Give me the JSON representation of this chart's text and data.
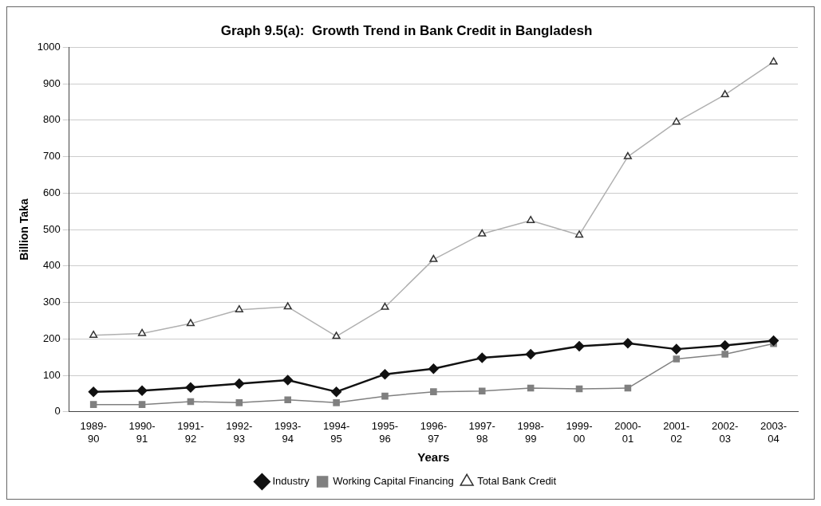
{
  "chart_data": {
    "type": "line",
    "title": "Graph 9.5(a):  Growth Trend in Bank Credit in Bangladesh",
    "xlabel": "Years",
    "ylabel": "Billion Taka",
    "categories": [
      "1989-90",
      "1990-91",
      "1991-92",
      "1992-93",
      "1993-94",
      "1994-95",
      "1995-96",
      "1996-97",
      "1997-98",
      "1998-99",
      "1999-00",
      "2000-01",
      "2001-02",
      "2002-03",
      "2003-04"
    ],
    "series": [
      {
        "name": "Industry",
        "color": "#111111",
        "marker": "diamond",
        "values": [
          55,
          58,
          67,
          77,
          87,
          55,
          103,
          118,
          148,
          158,
          180,
          188,
          172,
          182,
          195
        ]
      },
      {
        "name": "Working Capital Financing",
        "color": "#808080",
        "marker": "square",
        "values": [
          20,
          20,
          28,
          25,
          33,
          25,
          43,
          55,
          57,
          65,
          63,
          65,
          145,
          158,
          187
        ]
      },
      {
        "name": "Total Bank Credit",
        "color": "#b0b0b0",
        "marker": "triangle",
        "values": [
          210,
          215,
          242,
          280,
          288,
          207,
          287,
          418,
          488,
          525,
          485,
          700,
          795,
          870,
          960
        ]
      }
    ],
    "ylim": [
      0,
      1000
    ],
    "yticks": [
      0,
      100,
      200,
      300,
      400,
      500,
      600,
      700,
      800,
      900,
      1000
    ],
    "grid": "y",
    "legend": "bottom"
  }
}
